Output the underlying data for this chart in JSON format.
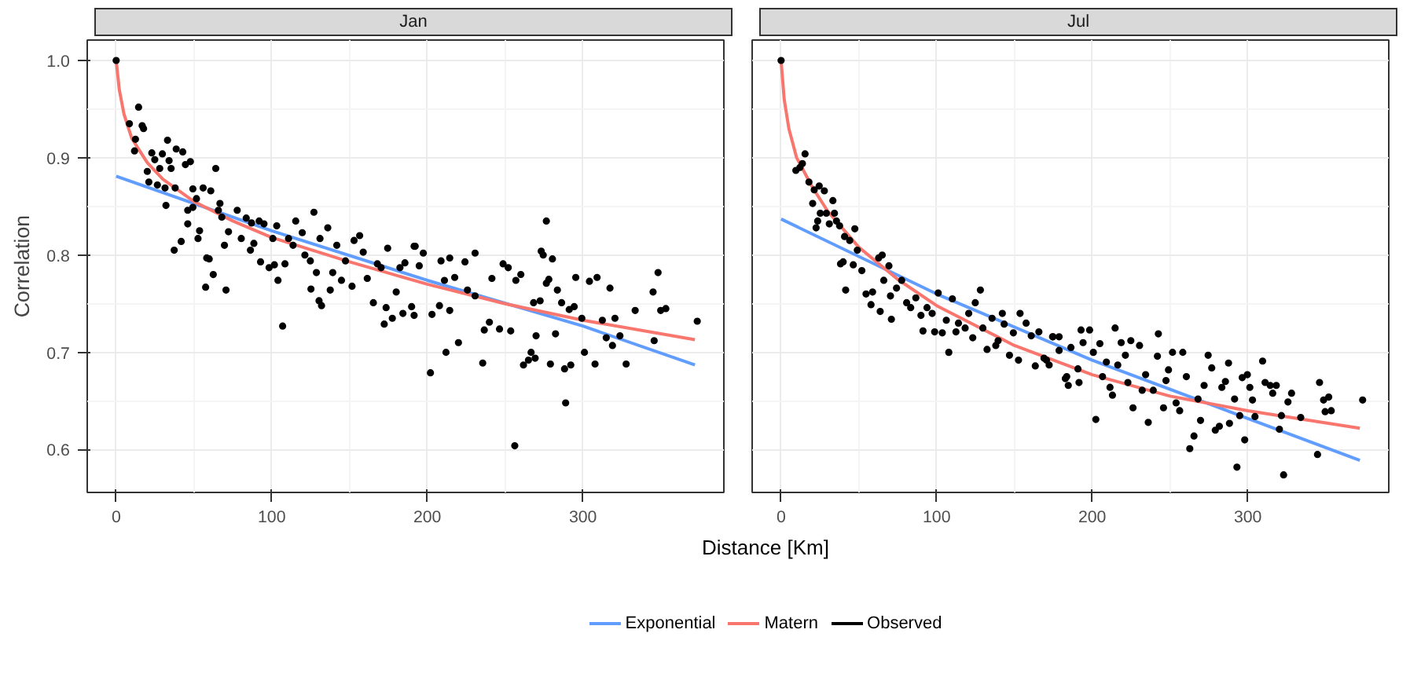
{
  "chart_data": [
    {
      "type": "scatter",
      "title": "Jan",
      "xlabel": "Distance [Km]",
      "ylabel": "Correlation",
      "xlim": [
        -18.6,
        390.6
      ],
      "ylim": [
        0.556,
        1.021
      ],
      "xticks": [
        0,
        100,
        200,
        300
      ],
      "yticks": [
        0.6,
        0.7,
        0.8,
        0.9,
        {
          "value": 1.0,
          "label": "1.0"
        }
      ],
      "grid": true,
      "legend": "bottom",
      "series": [
        {
          "name": "Exponential",
          "type": "line",
          "color": "#619cff",
          "x": [
            0,
            100,
            200,
            300,
            372
          ],
          "values": [
            0.881,
            0.825,
            0.774,
            0.727,
            0.687
          ]
        },
        {
          "name": "Matern",
          "type": "line",
          "color": "#f8766d",
          "x": [
            0,
            2,
            5,
            10,
            20,
            30,
            50,
            75,
            100,
            150,
            200,
            250,
            300,
            372
          ],
          "values": [
            1.0,
            0.97,
            0.945,
            0.92,
            0.895,
            0.878,
            0.855,
            0.835,
            0.818,
            0.793,
            0.77,
            0.75,
            0.733,
            0.713
          ]
        },
        {
          "name": "Observed",
          "marker": "circle",
          "color": "#000000",
          "x": [
            0,
            14.4,
            8.5,
            12.4,
            16.7,
            17.6,
            11.8,
            22.9,
            24.8,
            29.7,
            33,
            34,
            38.6,
            42.8,
            44.5,
            47.7,
            35.3,
            28,
            20,
            21,
            26.5,
            31.4,
            32,
            37.9,
            49.3,
            64,
            55.9,
            60.8,
            51.6,
            46,
            49.3,
            46,
            53.6,
            52.6,
            41.8,
            37.3,
            58.2,
            59.8,
            62.4,
            57.5,
            70.6,
            66.7,
            65.7,
            67.9,
            72.2,
            69.6,
            77.8,
            80.4,
            83.6,
            87,
            86.3,
            88.5,
            91.9,
            95,
            92.8,
            98.3,
            101.7,
            104,
            103.2,
            100.7,
            107,
            108.5,
            110.8,
            115.4,
            113.7,
            119.6,
            121.3,
            124.8,
            125.2,
            127.1,
            128.7,
            131,
            130.4,
            132,
            136,
            137.6,
            139.2,
            141.8,
            144.8,
            147.4,
            151.6,
            152.9,
            156.5,
            158.8,
            161.4,
            165.3,
            167.9,
            170.3,
            172.3,
            173.5,
            174.5,
            177.5,
            180,
            182.4,
            184.3,
            185.6,
            189.9,
            191.5,
            192.2,
            194.8,
            202,
            212,
            220,
            235.6,
            191.5,
            197.4,
            208.8,
            214.4,
            230.7,
            224.2,
            217.6,
            211,
            225.8,
            230.7,
            207.8,
            214.4,
            203,
            236.6,
            246.4,
            253.6,
            239.9,
            241.5,
            248.7,
            252,
            256.9,
            260.1,
            256.2,
            261.8,
            265,
            266.7,
            269.3,
            269.9,
            268.3,
            272.5,
            273.2,
            274.5,
            276.5,
            278.1,
            276.5,
            279.1,
            280.4,
            282.4,
            283.6,
            286.3,
            288.2,
            288.9,
            292.2,
            291.2,
            294.4,
            295.4,
            299.3,
            301,
            304.2,
            309.1,
            307.8,
            312.5,
            315,
            317.4,
            319,
            320.6,
            323.8,
            327.8,
            333.6,
            345.1,
            345.8,
            348.3,
            350,
            353.3,
            373.5
          ],
          "values": [
            1.0,
            0.952,
            0.935,
            0.919,
            0.933,
            0.93,
            0.907,
            0.905,
            0.898,
            0.904,
            0.918,
            0.897,
            0.909,
            0.906,
            0.893,
            0.896,
            0.889,
            0.889,
            0.886,
            0.875,
            0.872,
            0.869,
            0.851,
            0.869,
            0.868,
            0.889,
            0.869,
            0.866,
            0.858,
            0.846,
            0.849,
            0.832,
            0.825,
            0.817,
            0.814,
            0.805,
            0.797,
            0.796,
            0.78,
            0.767,
            0.764,
            0.853,
            0.846,
            0.839,
            0.824,
            0.81,
            0.846,
            0.817,
            0.838,
            0.833,
            0.805,
            0.812,
            0.835,
            0.832,
            0.793,
            0.787,
            0.79,
            0.774,
            0.83,
            0.817,
            0.727,
            0.791,
            0.817,
            0.835,
            0.81,
            0.823,
            0.8,
            0.794,
            0.765,
            0.844,
            0.782,
            0.817,
            0.753,
            0.748,
            0.828,
            0.764,
            0.782,
            0.81,
            0.774,
            0.794,
            0.768,
            0.815,
            0.82,
            0.803,
            0.776,
            0.751,
            0.791,
            0.787,
            0.729,
            0.746,
            0.807,
            0.735,
            0.762,
            0.787,
            0.74,
            0.792,
            0.747,
            0.738,
            0.809,
            0.789,
            0.679,
            0.7,
            0.71,
            0.689,
            0.809,
            0.802,
            0.794,
            0.797,
            0.802,
            0.793,
            0.777,
            0.774,
            0.764,
            0.758,
            0.748,
            0.743,
            0.739,
            0.723,
            0.724,
            0.722,
            0.731,
            0.776,
            0.791,
            0.787,
            0.774,
            0.78,
            0.604,
            0.687,
            0.692,
            0.7,
            0.694,
            0.717,
            0.751,
            0.753,
            0.804,
            0.8,
            0.835,
            0.775,
            0.771,
            0.688,
            0.796,
            0.719,
            0.764,
            0.751,
            0.683,
            0.648,
            0.687,
            0.744,
            0.747,
            0.777,
            0.735,
            0.7,
            0.773,
            0.777,
            0.688,
            0.733,
            0.715,
            0.766,
            0.707,
            0.735,
            0.717,
            0.688,
            0.743,
            0.762,
            0.712,
            0.782,
            0.743,
            0.745,
            0.732
          ]
        }
      ]
    },
    {
      "type": "scatter",
      "title": "Jul",
      "xlim": [
        -18.6,
        390.6
      ],
      "ylim": [
        0.556,
        1.021
      ],
      "xticks": [
        0,
        100,
        200,
        300
      ],
      "yticks": [
        0.6,
        0.7,
        0.8,
        0.9,
        1.0
      ],
      "tick_labels": "x",
      "grid": true,
      "series": [
        {
          "type": "line",
          "color": "#619cff",
          "x": [
            0,
            100,
            200,
            300,
            372
          ],
          "values": [
            0.837,
            0.76,
            0.692,
            0.632,
            0.589
          ]
        },
        {
          "type": "line",
          "color": "#f8766d",
          "x": [
            0,
            2,
            5,
            10,
            20,
            30,
            50,
            75,
            100,
            150,
            200,
            250,
            300,
            372
          ],
          "values": [
            1.0,
            0.96,
            0.93,
            0.9,
            0.87,
            0.845,
            0.808,
            0.775,
            0.748,
            0.707,
            0.677,
            0.655,
            0.64,
            0.622
          ]
        },
        {
          "marker": "circle",
          "color": "#000000",
          "x": [
            0,
            15.4,
            13.7,
            12.1,
            9.5,
            17.9,
            21.3,
            24.5,
            27.8,
            20.3,
            33.3,
            25.2,
            29.1,
            34.3,
            23.5,
            22.5,
            31,
            35.6,
            37.6,
            40.8,
            44.1,
            47.4,
            49,
            39.9,
            38.2,
            46.4,
            41.5,
            51.9,
            54.6,
            58.8,
            57.8,
            62.7,
            65,
            63.7,
            66,
            69.3,
            70.3,
            70.9,
            74.2,
            77.5,
            80.7,
            83.3,
            86.6,
            89.9,
            91.2,
            93.8,
            97.1,
            98.7,
            101,
            103.6,
            106.2,
            107.8,
            110.1,
            112.4,
            114,
            118.3,
            120.6,
            123.2,
            124.8,
            128.1,
            129.7,
            132.4,
            135.6,
            138,
            139.5,
            142.2,
            143.4,
            146.8,
            149.3,
            152.6,
            153.6,
            157.5,
            160.8,
            163.4,
            165.7,
            169,
            172.3,
            174.8,
            178.7,
            182.7,
            184.6,
            170.6,
            174.5,
            178.7,
            183.6,
            186.3,
            190.8,
            192.8,
            191.5,
            194.1,
            198.3,
            200.7,
            202.3,
            204.9,
            206.6,
            209.1,
            211.4,
            213,
            214.7,
            216.4,
            218.6,
            221.3,
            222.9,
            224.8,
            226.2,
            230.4,
            232.1,
            234.3,
            236,
            239.2,
            241.9,
            242.5,
            245.8,
            247.4,
            249,
            251.6,
            253.9,
            256.2,
            258.2,
            260.5,
            262.7,
            265.4,
            268,
            269.6,
            271.9,
            274.5,
            276.8,
            279.1,
            281.7,
            283.3,
            285.6,
            287.6,
            288.2,
            291.5,
            294.8,
            296.4,
            298,
            299.7,
            301.3,
            303,
            304.6,
            309.5,
            311.1,
            314.4,
            316,
            318.3,
            320.3,
            321.6,
            325.8,
            328.1,
            334,
            344.8,
            346.1,
            348.7,
            349.7,
            352,
            353.6,
            373.8,
            323,
            293
          ],
          "values": [
            1.0,
            0.904,
            0.894,
            0.89,
            0.887,
            0.875,
            0.867,
            0.871,
            0.866,
            0.853,
            0.856,
            0.843,
            0.843,
            0.843,
            0.835,
            0.828,
            0.832,
            0.835,
            0.83,
            0.819,
            0.815,
            0.827,
            0.805,
            0.793,
            0.791,
            0.79,
            0.764,
            0.784,
            0.76,
            0.762,
            0.749,
            0.797,
            0.8,
            0.742,
            0.774,
            0.789,
            0.758,
            0.734,
            0.766,
            0.774,
            0.751,
            0.746,
            0.756,
            0.738,
            0.722,
            0.746,
            0.74,
            0.721,
            0.761,
            0.72,
            0.733,
            0.7,
            0.755,
            0.721,
            0.73,
            0.725,
            0.74,
            0.715,
            0.751,
            0.764,
            0.725,
            0.703,
            0.735,
            0.707,
            0.712,
            0.74,
            0.729,
            0.697,
            0.72,
            0.692,
            0.74,
            0.73,
            0.717,
            0.686,
            0.721,
            0.694,
            0.687,
            0.716,
            0.702,
            0.673,
            0.666,
            0.692,
            0.716,
            0.716,
            0.675,
            0.705,
            0.683,
            0.723,
            0.669,
            0.71,
            0.723,
            0.7,
            0.631,
            0.709,
            0.675,
            0.69,
            0.664,
            0.656,
            0.725,
            0.687,
            0.71,
            0.697,
            0.669,
            0.712,
            0.643,
            0.707,
            0.661,
            0.677,
            0.628,
            0.661,
            0.696,
            0.719,
            0.643,
            0.671,
            0.682,
            0.7,
            0.648,
            0.64,
            0.7,
            0.675,
            0.601,
            0.614,
            0.652,
            0.63,
            0.666,
            0.697,
            0.684,
            0.62,
            0.624,
            0.664,
            0.67,
            0.689,
            0.627,
            0.652,
            0.635,
            0.674,
            0.61,
            0.677,
            0.664,
            0.651,
            0.634,
            0.691,
            0.669,
            0.666,
            0.658,
            0.666,
            0.621,
            0.635,
            0.649,
            0.658,
            0.633,
            0.595,
            0.669,
            0.651,
            0.639,
            0.654,
            0.64,
            0.651,
            0.574,
            0.582
          ]
        }
      ]
    }
  ]
}
